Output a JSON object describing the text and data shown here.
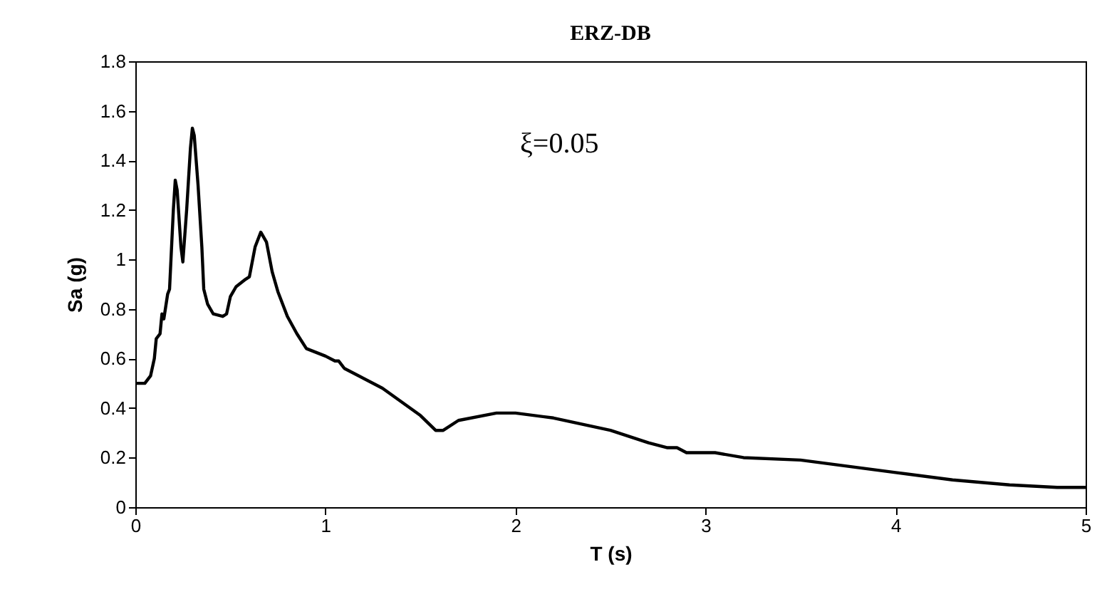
{
  "chart_data": {
    "type": "line",
    "title": "ERZ-DB",
    "xlabel": "T  (s)",
    "ylabel": "Sa  (g)",
    "annotations": [
      "ξ=0.05"
    ],
    "x": [
      0,
      0.05,
      0.08,
      0.1,
      0.11,
      0.13,
      0.14,
      0.15,
      0.17,
      0.18,
      0.2,
      0.21,
      0.22,
      0.24,
      0.25,
      0.27,
      0.29,
      0.3,
      0.31,
      0.33,
      0.35,
      0.36,
      0.38,
      0.41,
      0.46,
      0.48,
      0.5,
      0.53,
      0.58,
      0.6,
      0.63,
      0.66,
      0.69,
      0.72,
      0.75,
      0.8,
      0.85,
      0.9,
      1.0,
      1.05,
      1.07,
      1.1,
      1.3,
      1.5,
      1.58,
      1.62,
      1.7,
      1.9,
      2.0,
      2.2,
      2.5,
      2.7,
      2.8,
      2.85,
      2.9,
      3.05,
      3.2,
      3.5,
      3.7,
      4.0,
      4.3,
      4.6,
      4.85,
      5.0
    ],
    "series": [
      {
        "color": "#000000",
        "values": [
          0.5,
          0.5,
          0.53,
          0.6,
          0.68,
          0.7,
          0.78,
          0.76,
          0.86,
          0.88,
          1.2,
          1.32,
          1.28,
          1.05,
          0.99,
          1.2,
          1.45,
          1.53,
          1.5,
          1.3,
          1.05,
          0.88,
          0.82,
          0.78,
          0.77,
          0.78,
          0.85,
          0.89,
          0.92,
          0.93,
          1.05,
          1.11,
          1.07,
          0.95,
          0.87,
          0.77,
          0.7,
          0.64,
          0.61,
          0.59,
          0.59,
          0.56,
          0.48,
          0.37,
          0.31,
          0.31,
          0.35,
          0.38,
          0.38,
          0.36,
          0.31,
          0.26,
          0.24,
          0.24,
          0.22,
          0.22,
          0.2,
          0.19,
          0.17,
          0.14,
          0.11,
          0.09,
          0.08,
          0.08
        ]
      }
    ],
    "xlim": [
      0,
      5
    ],
    "xticks": [
      0,
      1,
      2,
      3,
      4,
      5
    ],
    "ylim": [
      0,
      1.8
    ],
    "yticks": [
      0,
      0.2,
      0.4,
      0.6,
      0.8,
      1,
      1.2,
      1.4,
      1.6,
      1.8
    ],
    "grid": false,
    "legend": false,
    "line_style": "solid",
    "marker": "none"
  }
}
